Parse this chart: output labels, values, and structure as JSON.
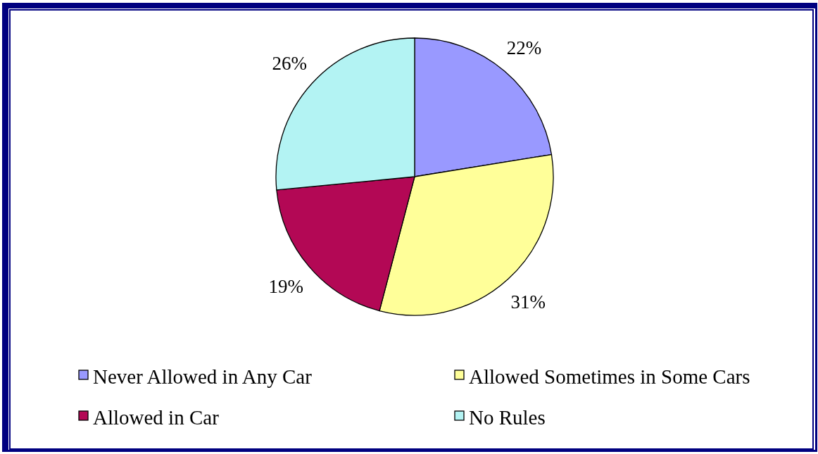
{
  "chart_data": {
    "type": "pie",
    "categories": [
      "Never Allowed in Any Car",
      "Allowed Sometimes in Some Cars",
      "Allowed in Car",
      "No Rules"
    ],
    "values": [
      22,
      31,
      19,
      26
    ],
    "colors": [
      "#9999ff",
      "#ffff99",
      "#b30855",
      "#b3f3f3"
    ],
    "value_labels": [
      "22%",
      "31%",
      "19%",
      "26%"
    ],
    "legend": "bottom"
  }
}
